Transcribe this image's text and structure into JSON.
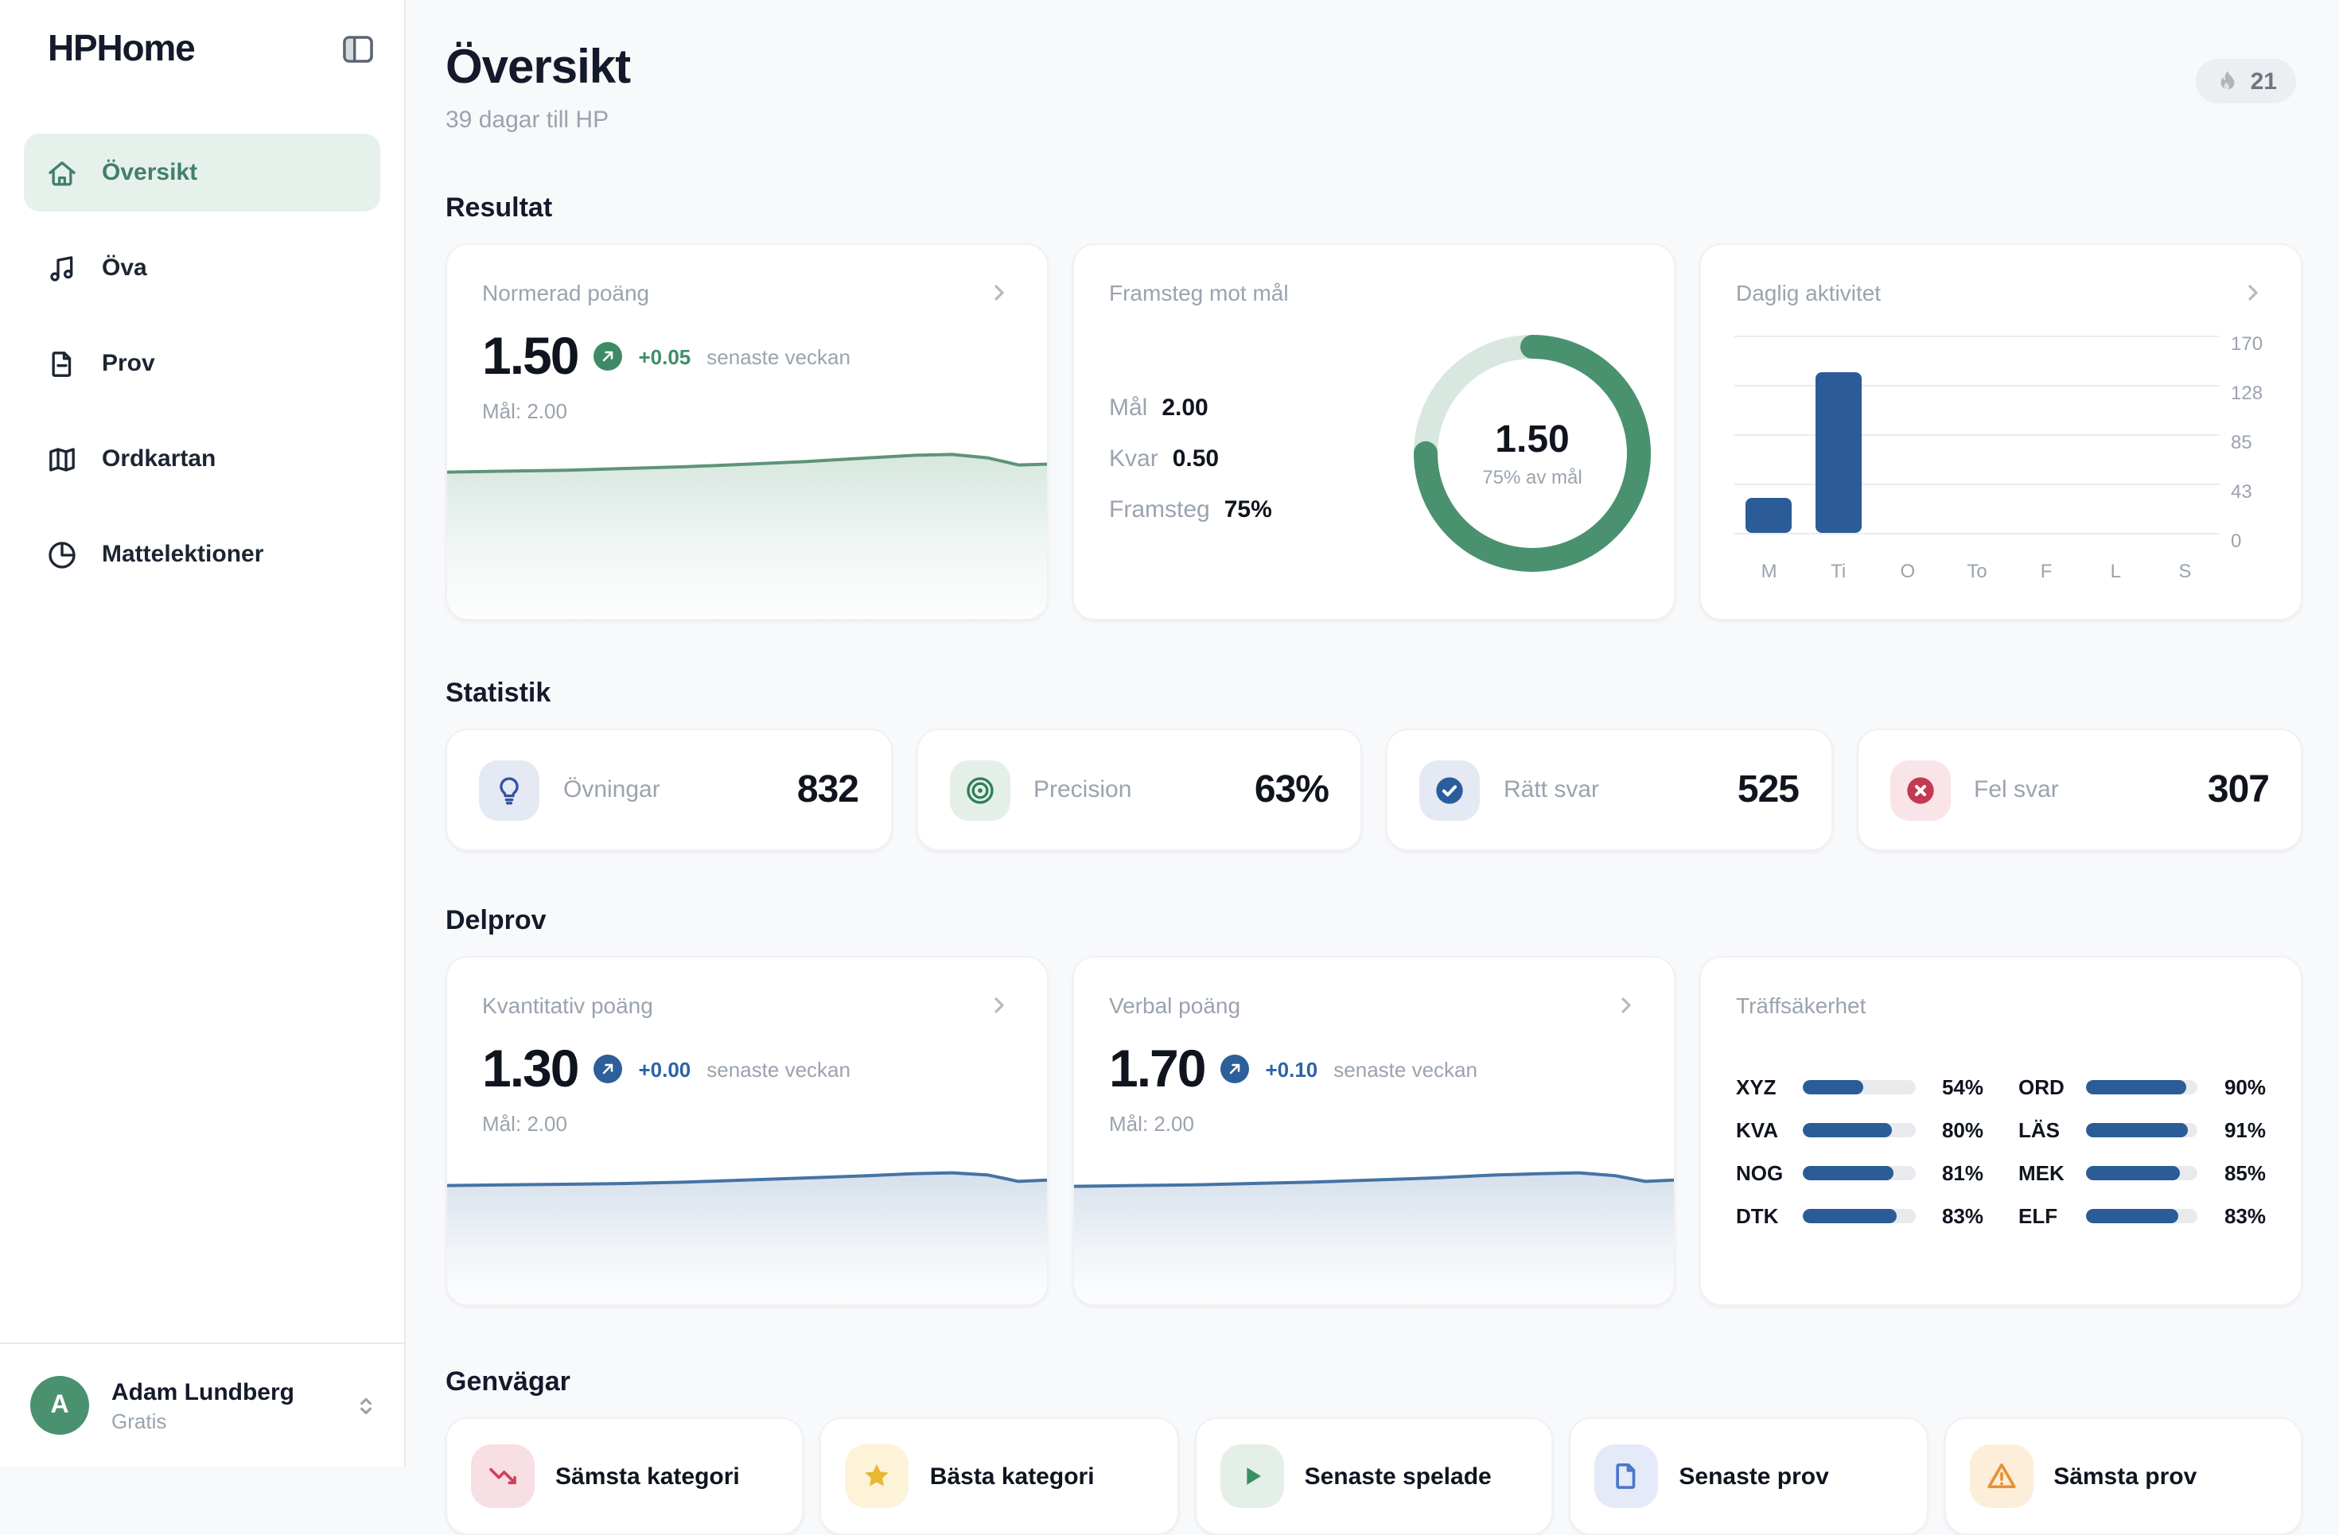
{
  "app": {
    "name": "HPHome"
  },
  "sidebar": {
    "items": [
      {
        "label": "Översikt",
        "icon": "home-icon",
        "active": true
      },
      {
        "label": "Öva",
        "icon": "music-note-icon",
        "active": false
      },
      {
        "label": "Prov",
        "icon": "document-icon",
        "active": false
      },
      {
        "label": "Ordkartan",
        "icon": "map-icon",
        "active": false
      },
      {
        "label": "Mattelektioner",
        "icon": "pie-chart-icon",
        "active": false
      }
    ],
    "user": {
      "initial": "A",
      "name": "Adam Lundberg",
      "plan": "Gratis"
    }
  },
  "header": {
    "title": "Översikt",
    "subtitle": "39 dagar till HP",
    "streak_count": "21"
  },
  "sections": {
    "resultat": "Resultat",
    "statistik": "Statistik",
    "delprov": "Delprov",
    "genvagar": "Genvägar"
  },
  "cards": {
    "normerad": {
      "title": "Normerad poäng",
      "value": "1.50",
      "delta": "+0.05",
      "delta_suffix": "senaste veckan",
      "goal": "Mål: 2.00"
    },
    "framsteg": {
      "title": "Framsteg mot mål",
      "rows": [
        {
          "label": "Mål",
          "value": "2.00"
        },
        {
          "label": "Kvar",
          "value": "0.50"
        },
        {
          "label": "Framsteg",
          "value": "75%"
        }
      ],
      "center_value": "1.50",
      "center_caption": "75% av mål"
    },
    "daglig": {
      "title": "Daglig aktivitet"
    },
    "kvantitativ": {
      "title": "Kvantitativ poäng",
      "value": "1.30",
      "delta": "+0.00",
      "delta_suffix": "senaste veckan",
      "goal": "Mål: 2.00"
    },
    "verbal": {
      "title": "Verbal poäng",
      "value": "1.70",
      "delta": "+0.10",
      "delta_suffix": "senaste veckan",
      "goal": "Mål: 2.00"
    },
    "traffsakerhet": {
      "title": "Träffsäkerhet"
    }
  },
  "stats": {
    "cards": [
      {
        "label": "Övningar",
        "value": "832",
        "icon": "lightbulb-icon"
      },
      {
        "label": "Precision",
        "value": "63%",
        "icon": "target-icon"
      },
      {
        "label": "Rätt svar",
        "value": "525",
        "icon": "check-circle-icon"
      },
      {
        "label": "Fel svar",
        "value": "307",
        "icon": "x-circle-icon"
      }
    ]
  },
  "genvagar": {
    "cards": [
      {
        "label": "Sämsta kategori",
        "icon": "trending-down-icon"
      },
      {
        "label": "Bästa kategori",
        "icon": "star-icon"
      },
      {
        "label": "Senaste spelade",
        "icon": "play-icon"
      },
      {
        "label": "Senaste prov",
        "icon": "document-icon"
      },
      {
        "label": "Sämsta prov",
        "icon": "alert-icon"
      }
    ]
  },
  "colors": {
    "green": "#4a9170",
    "green_line": "#5d9478",
    "blue": "#2b5c97",
    "blue_line": "#4573a5",
    "red": "#c23a52",
    "donut_track": "#d8e7df"
  },
  "chart_data": [
    {
      "id": "normerad-trend",
      "type": "area",
      "title": "Normerad poäng",
      "color": "#5d9478",
      "points": [
        [
          0,
          16
        ],
        [
          10,
          15.5
        ],
        [
          20,
          15
        ],
        [
          30,
          14
        ],
        [
          40,
          13
        ],
        [
          50,
          11.5
        ],
        [
          60,
          10
        ],
        [
          70,
          8
        ],
        [
          78,
          6.5
        ],
        [
          84,
          6
        ],
        [
          90,
          8
        ],
        [
          95,
          12
        ],
        [
          100,
          11.5
        ]
      ]
    },
    {
      "id": "progress-donut",
      "type": "donut",
      "title": "Framsteg mot mål",
      "value": 1.5,
      "goal": 2.0,
      "remaining": 0.5,
      "percent": 75
    },
    {
      "id": "daily-activity",
      "type": "bar",
      "title": "Daglig aktivitet",
      "categories": [
        "M",
        "Ti",
        "O",
        "To",
        "F",
        "L",
        "S"
      ],
      "values": [
        30,
        138,
        0,
        0,
        0,
        0,
        0
      ],
      "yticks": [
        170,
        128,
        85,
        43,
        0
      ],
      "ylim": [
        0,
        170
      ],
      "grid": true,
      "ylabel": ""
    },
    {
      "id": "kvantitativ-trend",
      "type": "area",
      "title": "Kvantitativ poäng",
      "color": "#4573a5",
      "points": [
        [
          0,
          15
        ],
        [
          10,
          14.5
        ],
        [
          20,
          14
        ],
        [
          30,
          13.5
        ],
        [
          40,
          12.5
        ],
        [
          50,
          11
        ],
        [
          60,
          9.5
        ],
        [
          70,
          8
        ],
        [
          78,
          6.5
        ],
        [
          84,
          6
        ],
        [
          90,
          7.5
        ],
        [
          95,
          12
        ],
        [
          100,
          11
        ]
      ]
    },
    {
      "id": "verbal-trend",
      "type": "area",
      "title": "Verbal poäng",
      "color": "#4573a5",
      "points": [
        [
          0,
          15.5
        ],
        [
          10,
          15
        ],
        [
          20,
          14.5
        ],
        [
          30,
          13.5
        ],
        [
          40,
          12.5
        ],
        [
          50,
          11
        ],
        [
          60,
          9.5
        ],
        [
          70,
          7.5
        ],
        [
          78,
          6.5
        ],
        [
          84,
          6
        ],
        [
          90,
          8
        ],
        [
          95,
          12
        ],
        [
          100,
          11
        ]
      ]
    },
    {
      "id": "accuracy",
      "type": "bar",
      "title": "Träffsäkerhet",
      "unit": "%",
      "columns": 2,
      "categories": [
        "XYZ",
        "KVA",
        "NOG",
        "DTK",
        "ORD",
        "LÄS",
        "MEK",
        "ELF"
      ],
      "values": [
        54,
        80,
        81,
        83,
        90,
        91,
        85,
        83
      ]
    }
  ]
}
